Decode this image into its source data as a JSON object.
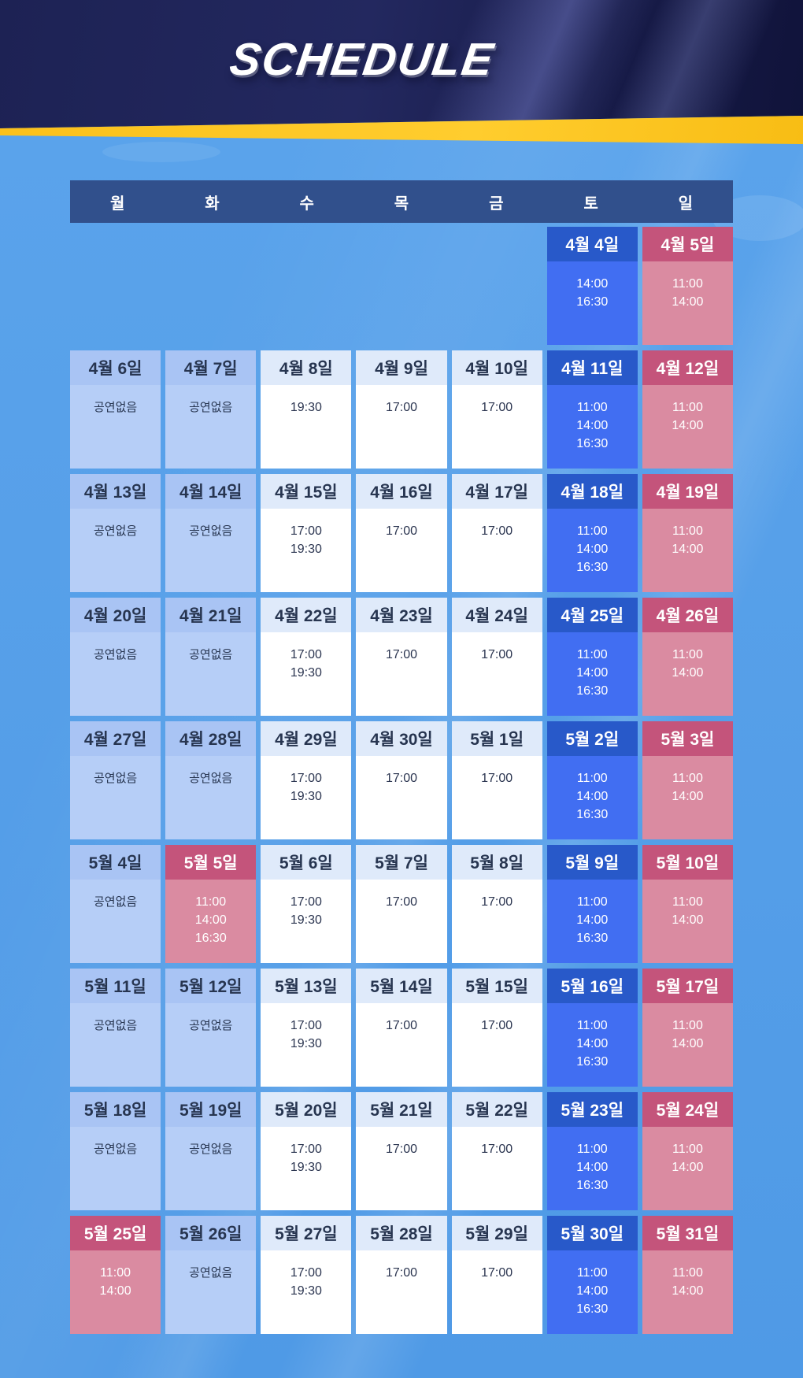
{
  "title": "SCHEDULE",
  "weekday_header": [
    "월",
    "화",
    "수",
    "목",
    "금",
    "토",
    "일"
  ],
  "labels": {
    "no_show": "공연없음"
  },
  "colors": {
    "page_background": "#57a0e9",
    "hero_navy": "#1d2254",
    "stripe_yellow": "#fcc41f",
    "weekday_band": "#31508c",
    "saturday_header": "#2859c9",
    "saturday_body": "#416ef2",
    "sunday_holiday_header": "#c4547b",
    "sunday_holiday_body": "#da8ba1",
    "noshow_header": "#a9c4f4",
    "noshow_body": "#b6cef7",
    "weekday_cell_header": "#dfeafa",
    "weekday_cell_body": "#ffffff",
    "dark_text": "#273550"
  },
  "weeks": [
    [
      null,
      null,
      null,
      null,
      null,
      {
        "date": "4월 4일",
        "style": "blue",
        "times": [
          "14:00",
          "16:30"
        ]
      },
      {
        "date": "4월 5일",
        "style": "pink",
        "times": [
          "11:00",
          "14:00"
        ]
      }
    ],
    [
      {
        "date": "4월 6일",
        "style": "noshow"
      },
      {
        "date": "4월 7일",
        "style": "noshow"
      },
      {
        "date": "4월 8일",
        "style": "plain",
        "times": [
          "19:30"
        ]
      },
      {
        "date": "4월 9일",
        "style": "plain",
        "times": [
          "17:00"
        ]
      },
      {
        "date": "4월 10일",
        "style": "plain",
        "times": [
          "17:00"
        ]
      },
      {
        "date": "4월 11일",
        "style": "blue",
        "times": [
          "11:00",
          "14:00",
          "16:30"
        ]
      },
      {
        "date": "4월 12일",
        "style": "pink",
        "times": [
          "11:00",
          "14:00"
        ]
      }
    ],
    [
      {
        "date": "4월 13일",
        "style": "noshow"
      },
      {
        "date": "4월 14일",
        "style": "noshow"
      },
      {
        "date": "4월 15일",
        "style": "plain",
        "times": [
          "17:00",
          "19:30"
        ]
      },
      {
        "date": "4월 16일",
        "style": "plain",
        "times": [
          "17:00"
        ]
      },
      {
        "date": "4월 17일",
        "style": "plain",
        "times": [
          "17:00"
        ]
      },
      {
        "date": "4월 18일",
        "style": "blue",
        "times": [
          "11:00",
          "14:00",
          "16:30"
        ]
      },
      {
        "date": "4월 19일",
        "style": "pink",
        "times": [
          "11:00",
          "14:00"
        ]
      }
    ],
    [
      {
        "date": "4월 20일",
        "style": "noshow"
      },
      {
        "date": "4월 21일",
        "style": "noshow"
      },
      {
        "date": "4월 22일",
        "style": "plain",
        "times": [
          "17:00",
          "19:30"
        ]
      },
      {
        "date": "4월 23일",
        "style": "plain",
        "times": [
          "17:00"
        ]
      },
      {
        "date": "4월 24일",
        "style": "plain",
        "times": [
          "17:00"
        ]
      },
      {
        "date": "4월 25일",
        "style": "blue",
        "times": [
          "11:00",
          "14:00",
          "16:30"
        ]
      },
      {
        "date": "4월 26일",
        "style": "pink",
        "times": [
          "11:00",
          "14:00"
        ]
      }
    ],
    [
      {
        "date": "4월 27일",
        "style": "noshow"
      },
      {
        "date": "4월 28일",
        "style": "noshow"
      },
      {
        "date": "4월 29일",
        "style": "plain",
        "times": [
          "17:00",
          "19:30"
        ]
      },
      {
        "date": "4월 30일",
        "style": "plain",
        "times": [
          "17:00"
        ]
      },
      {
        "date": "5월 1일",
        "style": "plain",
        "times": [
          "17:00"
        ]
      },
      {
        "date": "5월 2일",
        "style": "blue",
        "times": [
          "11:00",
          "14:00",
          "16:30"
        ]
      },
      {
        "date": "5월 3일",
        "style": "pink",
        "times": [
          "11:00",
          "14:00"
        ]
      }
    ],
    [
      {
        "date": "5월 4일",
        "style": "noshow"
      },
      {
        "date": "5월 5일",
        "style": "pink",
        "times": [
          "11:00",
          "14:00",
          "16:30"
        ]
      },
      {
        "date": "5월 6일",
        "style": "plain",
        "times": [
          "17:00",
          "19:30"
        ]
      },
      {
        "date": "5월 7일",
        "style": "plain",
        "times": [
          "17:00"
        ]
      },
      {
        "date": "5월 8일",
        "style": "plain",
        "times": [
          "17:00"
        ]
      },
      {
        "date": "5월 9일",
        "style": "blue",
        "times": [
          "11:00",
          "14:00",
          "16:30"
        ]
      },
      {
        "date": "5월 10일",
        "style": "pink",
        "times": [
          "11:00",
          "14:00"
        ]
      }
    ],
    [
      {
        "date": "5월 11일",
        "style": "noshow"
      },
      {
        "date": "5월 12일",
        "style": "noshow"
      },
      {
        "date": "5월 13일",
        "style": "plain",
        "times": [
          "17:00",
          "19:30"
        ]
      },
      {
        "date": "5월 14일",
        "style": "plain",
        "times": [
          "17:00"
        ]
      },
      {
        "date": "5월 15일",
        "style": "plain",
        "times": [
          "17:00"
        ]
      },
      {
        "date": "5월 16일",
        "style": "blue",
        "times": [
          "11:00",
          "14:00",
          "16:30"
        ]
      },
      {
        "date": "5월 17일",
        "style": "pink",
        "times": [
          "11:00",
          "14:00"
        ]
      }
    ],
    [
      {
        "date": "5월 18일",
        "style": "noshow"
      },
      {
        "date": "5월 19일",
        "style": "noshow"
      },
      {
        "date": "5월 20일",
        "style": "plain",
        "times": [
          "17:00",
          "19:30"
        ]
      },
      {
        "date": "5월 21일",
        "style": "plain",
        "times": [
          "17:00"
        ]
      },
      {
        "date": "5월 22일",
        "style": "plain",
        "times": [
          "17:00"
        ]
      },
      {
        "date": "5월 23일",
        "style": "blue",
        "times": [
          "11:00",
          "14:00",
          "16:30"
        ]
      },
      {
        "date": "5월 24일",
        "style": "pink",
        "times": [
          "11:00",
          "14:00"
        ]
      }
    ],
    [
      {
        "date": "5월 25일",
        "style": "pink",
        "times": [
          "11:00",
          "14:00"
        ]
      },
      {
        "date": "5월 26일",
        "style": "noshow"
      },
      {
        "date": "5월 27일",
        "style": "plain",
        "times": [
          "17:00",
          "19:30"
        ]
      },
      {
        "date": "5월 28일",
        "style": "plain",
        "times": [
          "17:00"
        ]
      },
      {
        "date": "5월 29일",
        "style": "plain",
        "times": [
          "17:00"
        ]
      },
      {
        "date": "5월 30일",
        "style": "blue",
        "times": [
          "11:00",
          "14:00",
          "16:30"
        ]
      },
      {
        "date": "5월 31일",
        "style": "pink",
        "times": [
          "11:00",
          "14:00"
        ]
      }
    ]
  ]
}
